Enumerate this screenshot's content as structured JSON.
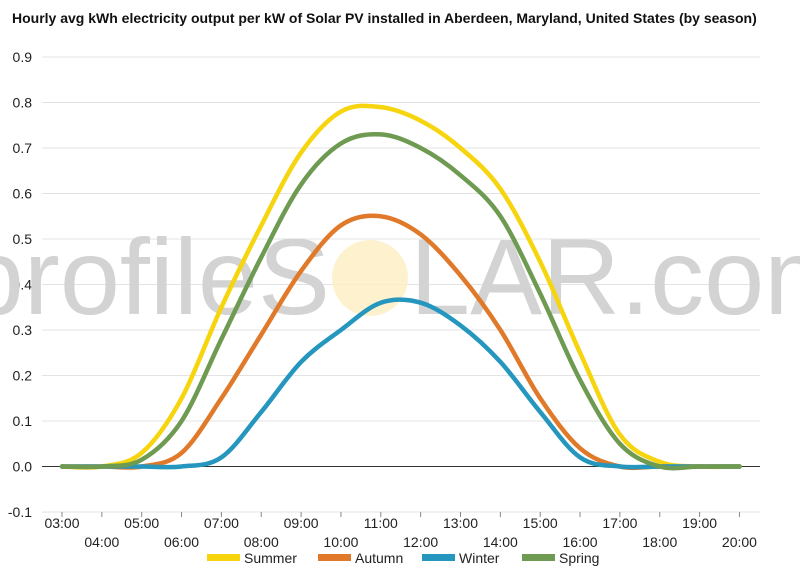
{
  "chart_data": {
    "type": "line",
    "title": "Hourly avg kWh electricity output per kW of Solar PV installed in Aberdeen, Maryland, United States (by season)",
    "watermark": {
      "left": "profileS",
      "right": "LAR.com"
    },
    "xlabel": "",
    "ylabel": "",
    "x": [
      "03:00",
      "04:00",
      "05:00",
      "06:00",
      "07:00",
      "08:00",
      "09:00",
      "10:00",
      "11:00",
      "12:00",
      "13:00",
      "14:00",
      "15:00",
      "16:00",
      "17:00",
      "18:00",
      "19:00",
      "20:00"
    ],
    "ylim": [
      -0.1,
      0.9
    ],
    "yticks": [
      "-0.1",
      "0.0",
      "0.1",
      "0.2",
      "0.3",
      "0.4",
      "0.5",
      "0.6",
      "0.7",
      "0.8",
      "0.9"
    ],
    "grid": true,
    "legend": "bottom",
    "series": [
      {
        "name": "Summer",
        "color": "#f6d40e",
        "values": [
          0.0,
          0.0,
          0.03,
          0.15,
          0.35,
          0.53,
          0.69,
          0.78,
          0.79,
          0.76,
          0.7,
          0.61,
          0.45,
          0.25,
          0.07,
          0.01,
          0.0,
          0.0
        ]
      },
      {
        "name": "Autumn",
        "color": "#e07a2a",
        "values": [
          0.0,
          0.0,
          0.0,
          0.03,
          0.15,
          0.29,
          0.43,
          0.53,
          0.55,
          0.51,
          0.42,
          0.3,
          0.15,
          0.04,
          0.0,
          0.0,
          0.0,
          0.0
        ]
      },
      {
        "name": "Winter",
        "color": "#2596be",
        "values": [
          0.0,
          0.0,
          0.0,
          0.0,
          0.02,
          0.12,
          0.23,
          0.3,
          0.36,
          0.36,
          0.31,
          0.23,
          0.12,
          0.02,
          0.0,
          0.0,
          0.0,
          0.0
        ]
      },
      {
        "name": "Spring",
        "color": "#6e9a51",
        "values": [
          0.0,
          0.0,
          0.015,
          0.1,
          0.28,
          0.46,
          0.62,
          0.71,
          0.73,
          0.7,
          0.64,
          0.55,
          0.38,
          0.19,
          0.05,
          0.0,
          0.0,
          0.0
        ]
      }
    ]
  }
}
